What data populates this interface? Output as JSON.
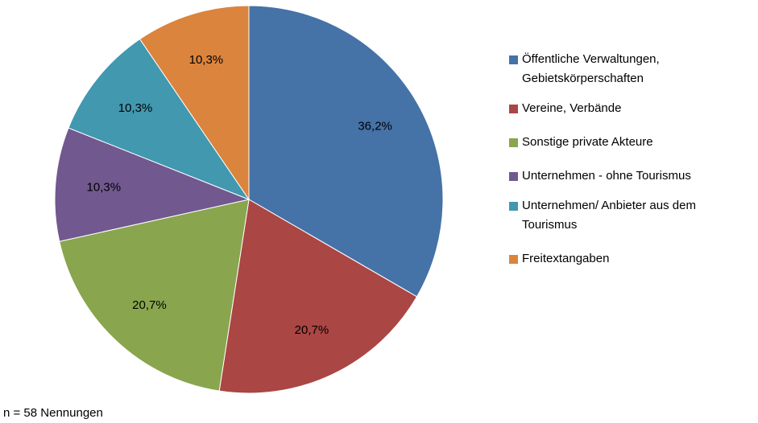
{
  "chart_data": {
    "type": "pie",
    "categories": [
      "Öffentliche Verwaltungen, Gebietskörperschaften",
      "Vereine, Verbände",
      "Sonstige private Akteure",
      "Unternehmen - ohne Tourismus",
      "Unternehmen/ Anbieter aus dem Tourismus",
      "Freitextangaben"
    ],
    "values": [
      36.2,
      20.7,
      20.7,
      10.3,
      10.3,
      10.3
    ],
    "value_labels": [
      "36,2%",
      "20,7%",
      "20,7%",
      "10,3%",
      "10,3%",
      "10,3%"
    ],
    "colors": [
      "#4572a7",
      "#aa4643",
      "#89a54e",
      "#71588f",
      "#4198af",
      "#db843d"
    ],
    "legend": "right",
    "note": "n = 58 Nennungen"
  }
}
